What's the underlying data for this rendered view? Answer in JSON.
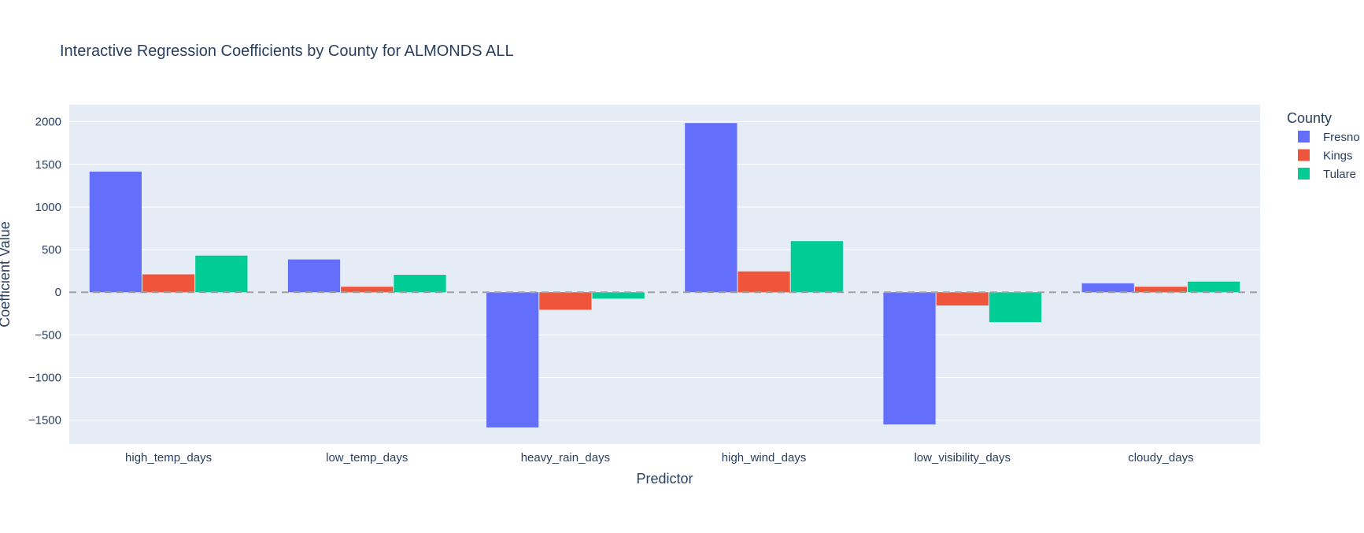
{
  "chart_data": {
    "type": "bar",
    "title": "Interactive Regression Coefficients by County for ALMONDS ALL",
    "xlabel": "Predictor",
    "ylabel": "Coefficient Value",
    "categories": [
      "high_temp_days",
      "low_temp_days",
      "heavy_rain_days",
      "high_wind_days",
      "low_visibility_days",
      "cloudy_days"
    ],
    "series": [
      {
        "name": "Fresno",
        "color": "#636efa",
        "values": [
          1415,
          385,
          -1585,
          1985,
          -1550,
          105
        ]
      },
      {
        "name": "Kings",
        "color": "#ef553b",
        "values": [
          210,
          65,
          -205,
          245,
          -155,
          65
        ]
      },
      {
        "name": "Tulare",
        "color": "#00cc96",
        "values": [
          430,
          205,
          -75,
          600,
          -350,
          125
        ]
      }
    ],
    "ylim": [
      -1780,
      2200
    ],
    "yticks": [
      2000,
      1500,
      1000,
      500,
      0,
      -500,
      -1000,
      -1500
    ],
    "ytick_labels": [
      "2000",
      "1500",
      "1000",
      "500",
      "0",
      "−500",
      "−1000",
      "−1500"
    ],
    "legend": {
      "title": "County",
      "placement": "right"
    },
    "reference_line": {
      "y": 0,
      "style": "dashed",
      "color": "#a0a0a0"
    },
    "grid": true,
    "plot_background": "#e5ecf6"
  }
}
